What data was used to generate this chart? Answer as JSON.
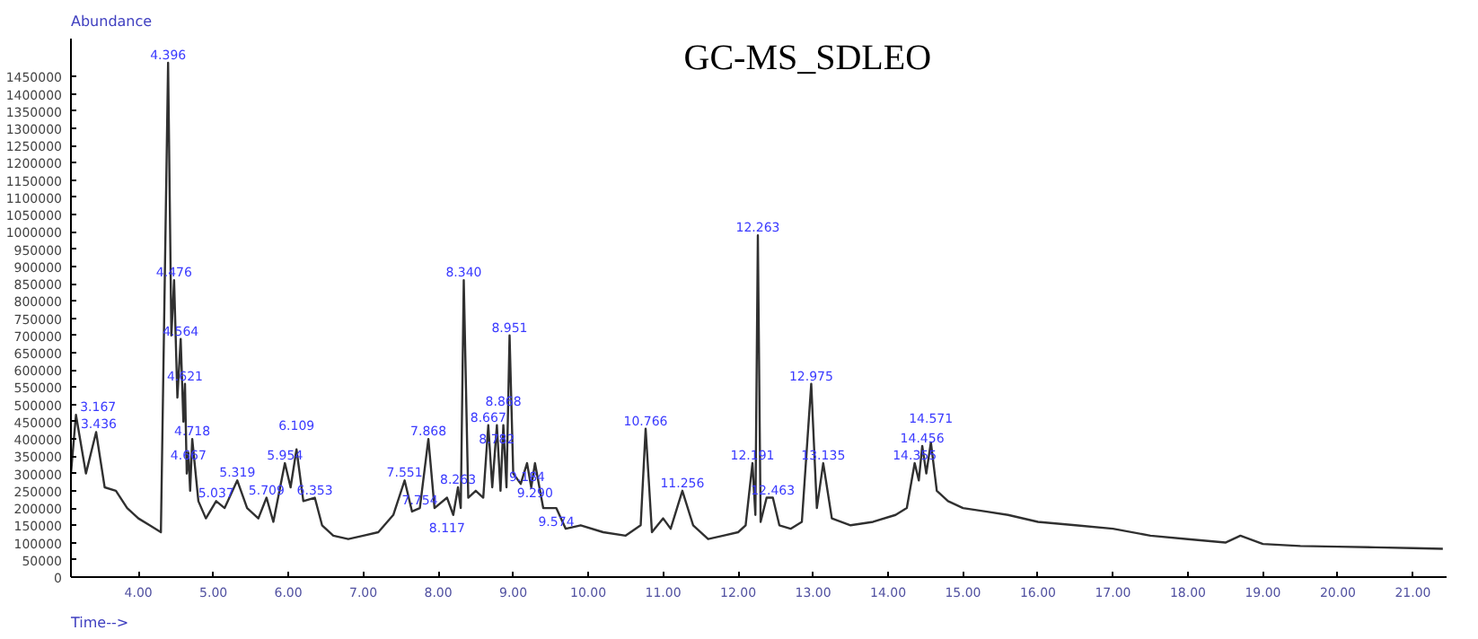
{
  "chart_data": {
    "type": "line",
    "title": "GC-MS_SDLEO",
    "xlabel": "Time-->",
    "ylabel": "Abundance",
    "xlim": [
      3.1,
      21.45
    ],
    "ylim": [
      0,
      1560000
    ],
    "xticks": [
      {
        "value": 4,
        "label": "4.00"
      },
      {
        "value": 5,
        "label": "5.00"
      },
      {
        "value": 6,
        "label": "6.00"
      },
      {
        "value": 7,
        "label": "7.00"
      },
      {
        "value": 8,
        "label": "8.00"
      },
      {
        "value": 9,
        "label": "9.00"
      },
      {
        "value": 10,
        "label": "10.00"
      },
      {
        "value": 11,
        "label": "11.00"
      },
      {
        "value": 12,
        "label": "12.00"
      },
      {
        "value": 13,
        "label": "13.00"
      },
      {
        "value": 14,
        "label": "14.00"
      },
      {
        "value": 15,
        "label": "15.00"
      },
      {
        "value": 16,
        "label": "16.00"
      },
      {
        "value": 17,
        "label": "17.00"
      },
      {
        "value": 18,
        "label": "18.00"
      },
      {
        "value": 19,
        "label": "19.00"
      },
      {
        "value": 20,
        "label": "20.00"
      },
      {
        "value": 21,
        "label": "21.00"
      }
    ],
    "yticks": [
      0,
      50000,
      100000,
      150000,
      200000,
      250000,
      300000,
      350000,
      400000,
      450000,
      500000,
      550000,
      600000,
      650000,
      700000,
      750000,
      800000,
      850000,
      900000,
      950000,
      1000000,
      1050000,
      1100000,
      1150000,
      1200000,
      1250000,
      1300000,
      1350000,
      1400000,
      1450000
    ],
    "grid": false,
    "marker": "none",
    "line_style": "solid",
    "series": [
      {
        "color": "#303030",
        "x": [
          3.1,
          3.167,
          3.3,
          3.436,
          3.55,
          3.7,
          3.85,
          4.0,
          4.15,
          4.3,
          4.396,
          4.44,
          4.476,
          4.52,
          4.564,
          4.6,
          4.621,
          4.645,
          4.667,
          4.69,
          4.718,
          4.8,
          4.9,
          5.037,
          5.15,
          5.319,
          5.45,
          5.6,
          5.709,
          5.8,
          5.954,
          6.03,
          6.109,
          6.2,
          6.353,
          6.45,
          6.6,
          6.8,
          7.0,
          7.2,
          7.4,
          7.551,
          7.65,
          7.754,
          7.868,
          7.95,
          8.117,
          8.2,
          8.263,
          8.3,
          8.34,
          8.4,
          8.5,
          8.6,
          8.667,
          8.72,
          8.782,
          8.83,
          8.868,
          8.91,
          8.951,
          9.0,
          9.1,
          9.184,
          9.24,
          9.29,
          9.4,
          9.574,
          9.7,
          9.9,
          10.2,
          10.5,
          10.7,
          10.766,
          10.85,
          11.0,
          11.1,
          11.256,
          11.4,
          11.6,
          11.8,
          12.0,
          12.1,
          12.191,
          12.23,
          12.263,
          12.3,
          12.38,
          12.463,
          12.55,
          12.7,
          12.85,
          12.975,
          13.05,
          13.135,
          13.25,
          13.5,
          13.8,
          14.1,
          14.25,
          14.355,
          14.41,
          14.456,
          14.51,
          14.571,
          14.65,
          14.8,
          15.0,
          15.3,
          15.6,
          16.0,
          16.5,
          17.0,
          17.5,
          18.0,
          18.5,
          18.7,
          19.0,
          19.5,
          20.0,
          20.5,
          21.0,
          21.4
        ],
        "values": [
          300000,
          470000,
          300000,
          420000,
          260000,
          250000,
          200000,
          170000,
          150000,
          130000,
          1490000,
          700000,
          860000,
          520000,
          690000,
          450000,
          560000,
          300000,
          360000,
          250000,
          400000,
          220000,
          170000,
          220000,
          200000,
          280000,
          200000,
          170000,
          230000,
          160000,
          330000,
          260000,
          370000,
          220000,
          230000,
          150000,
          120000,
          110000,
          120000,
          130000,
          180000,
          280000,
          190000,
          200000,
          400000,
          200000,
          230000,
          180000,
          260000,
          200000,
          860000,
          230000,
          250000,
          230000,
          440000,
          260000,
          440000,
          250000,
          440000,
          260000,
          700000,
          300000,
          270000,
          330000,
          260000,
          330000,
          200000,
          200000,
          140000,
          150000,
          130000,
          120000,
          150000,
          430000,
          130000,
          170000,
          140000,
          250000,
          150000,
          110000,
          120000,
          130000,
          150000,
          330000,
          180000,
          990000,
          160000,
          230000,
          230000,
          150000,
          140000,
          160000,
          560000,
          200000,
          330000,
          170000,
          150000,
          160000,
          180000,
          200000,
          330000,
          280000,
          380000,
          300000,
          390000,
          250000,
          220000,
          200000,
          190000,
          180000,
          160000,
          150000,
          140000,
          120000,
          110000,
          100000,
          120000,
          96000,
          90000,
          88000,
          86000,
          84000,
          82000
        ]
      }
    ],
    "annotations": [
      {
        "text": "3.167",
        "x": 3.167,
        "y": 470000
      },
      {
        "text": "3.436",
        "x": 3.436,
        "y": 420000
      },
      {
        "text": "4.396",
        "x": 4.396,
        "y": 1490000
      },
      {
        "text": "4.476",
        "x": 4.476,
        "y": 860000
      },
      {
        "text": "4.564",
        "x": 4.564,
        "y": 690000
      },
      {
        "text": "4.621",
        "x": 4.621,
        "y": 560000
      },
      {
        "text": "4.718",
        "x": 4.718,
        "y": 400000
      },
      {
        "text": "4.667",
        "x": 4.667,
        "y": 330000
      },
      {
        "text": "5.037",
        "x": 5.037,
        "y": 220000
      },
      {
        "text": "5.319",
        "x": 5.319,
        "y": 280000
      },
      {
        "text": "5.709",
        "x": 5.709,
        "y": 230000
      },
      {
        "text": "5.954",
        "x": 5.954,
        "y": 330000
      },
      {
        "text": "6.109",
        "x": 6.109,
        "y": 370000
      },
      {
        "text": "6.353",
        "x": 6.353,
        "y": 230000
      },
      {
        "text": "7.551",
        "x": 7.551,
        "y": 280000
      },
      {
        "text": "7.754",
        "x": 7.754,
        "y": 200000
      },
      {
        "text": "7.868",
        "x": 7.868,
        "y": 400000
      },
      {
        "text": "8.117",
        "x": 8.117,
        "y": 230000
      },
      {
        "text": "8.263",
        "x": 8.263,
        "y": 260000
      },
      {
        "text": "8.340",
        "x": 8.34,
        "y": 860000
      },
      {
        "text": "8.667",
        "x": 8.667,
        "y": 440000
      },
      {
        "text": "8.782",
        "x": 8.782,
        "y": 440000
      },
      {
        "text": "8.868",
        "x": 8.868,
        "y": 440000
      },
      {
        "text": "8.951",
        "x": 8.951,
        "y": 700000
      },
      {
        "text": "9.184",
        "x": 9.184,
        "y": 330000
      },
      {
        "text": "9.290",
        "x": 9.29,
        "y": 330000
      },
      {
        "text": "9.574",
        "x": 9.574,
        "y": 200000
      },
      {
        "text": "10.766",
        "x": 10.766,
        "y": 430000
      },
      {
        "text": "11.256",
        "x": 11.256,
        "y": 250000
      },
      {
        "text": "12.191",
        "x": 12.191,
        "y": 330000
      },
      {
        "text": "12.263",
        "x": 12.263,
        "y": 990000
      },
      {
        "text": "12.463",
        "x": 12.463,
        "y": 230000
      },
      {
        "text": "12.975",
        "x": 12.975,
        "y": 560000
      },
      {
        "text": "13.135",
        "x": 13.135,
        "y": 330000
      },
      {
        "text": "14.355",
        "x": 14.355,
        "y": 330000
      },
      {
        "text": "14.456",
        "x": 14.456,
        "y": 380000
      },
      {
        "text": "14.571",
        "x": 14.571,
        "y": 390000
      }
    ]
  }
}
